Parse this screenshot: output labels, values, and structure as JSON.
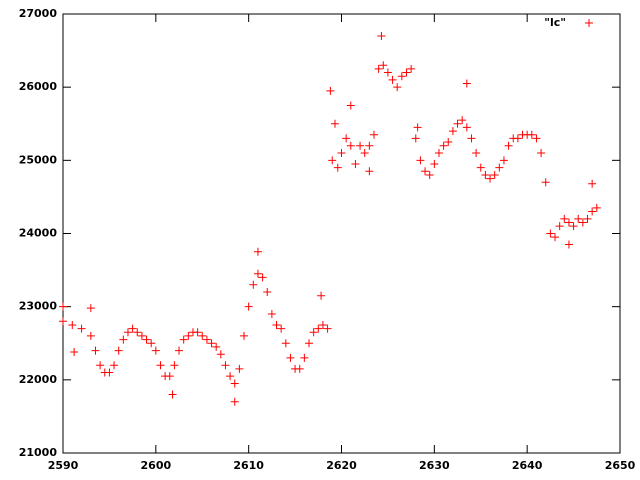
{
  "chart_data": {
    "type": "scatter",
    "x": [
      2590,
      2591,
      2592,
      2593,
      2593.5,
      2594,
      2594.5,
      2595,
      2595.5,
      2596,
      2596.5,
      2597,
      2597.5,
      2598,
      2598.5,
      2599,
      2599.5,
      2600,
      2600.5,
      2601,
      2601.5,
      2602,
      2602.5,
      2603,
      2603.5,
      2604,
      2604.5,
      2605,
      2605.5,
      2606,
      2606.5,
      2607,
      2607.5,
      2608,
      2608.5,
      2609,
      2609.5,
      2610,
      2610.5,
      2611,
      2611.5,
      2612,
      2612.5,
      2613,
      2613.5,
      2614,
      2614.5,
      2615,
      2615.5,
      2616,
      2616.5,
      2617,
      2617.5,
      2618,
      2618.5,
      2619,
      2619.3,
      2619.6,
      2620,
      2620.5,
      2621,
      2621.5,
      2622,
      2622.5,
      2623,
      2623.5,
      2624,
      2624.5,
      2625,
      2625.5,
      2626,
      2626.5,
      2627,
      2627.5,
      2628,
      2628.5,
      2629,
      2629.5,
      2630,
      2630.5,
      2631,
      2631.5,
      2632,
      2632.5,
      2633,
      2633.5,
      2634,
      2634.5,
      2635,
      2635.5,
      2636,
      2636.5,
      2637,
      2637.5,
      2638,
      2638.5,
      2639,
      2639.5,
      2640,
      2640.5,
      2641,
      2641.5,
      2642,
      2642.5,
      2643,
      2643.5,
      2644,
      2644.5,
      2645,
      2645.5,
      2646,
      2646.5,
      2647,
      2647.5,
      2591.2,
      2601.8,
      2608.5,
      2611,
      2617.8,
      2590,
      2593,
      2618.8,
      2624.3,
      2621,
      2623,
      2633.5,
      2628.2,
      2647,
      2644.5
    ],
    "series": [
      {
        "name": "\"lc\"",
        "color": "#ff0000",
        "values": [
          22800,
          22750,
          22700,
          22600,
          22400,
          22200,
          22100,
          22100,
          22200,
          22400,
          22550,
          22650,
          22700,
          22650,
          22600,
          22550,
          22500,
          22400,
          22200,
          22050,
          22050,
          22200,
          22400,
          22550,
          22600,
          22650,
          22650,
          22600,
          22550,
          22500,
          22450,
          22350,
          22200,
          22050,
          21950,
          22150,
          22600,
          23000,
          23300,
          23450,
          23400,
          23200,
          22900,
          22750,
          22700,
          22500,
          22300,
          22150,
          22150,
          22300,
          22500,
          22650,
          22700,
          22750,
          22700,
          25000,
          25500,
          24900,
          25100,
          25300,
          25200,
          24950,
          25200,
          25100,
          25200,
          25350,
          26250,
          26300,
          26200,
          26100,
          26000,
          26150,
          26200,
          26250,
          25300,
          25000,
          24850,
          24800,
          24950,
          25100,
          25200,
          25250,
          25400,
          25500,
          25550,
          25450,
          25300,
          25100,
          24900,
          24800,
          24750,
          24800,
          24900,
          25000,
          25200,
          25300,
          25300,
          25350,
          25350,
          25350,
          25300,
          25100,
          24700,
          24000,
          23950,
          24100,
          24200,
          24150,
          24100,
          24200,
          24150,
          24200,
          24300,
          24350,
          22380,
          21800,
          21700,
          23750,
          23150,
          23000,
          22980,
          25950,
          26700,
          25750,
          24850,
          26050,
          25450,
          24680,
          23850
        ]
      }
    ],
    "xlim": [
      2590,
      2650
    ],
    "xticks": [
      2590,
      2600,
      2610,
      2620,
      2630,
      2640,
      2650
    ],
    "ylim": [
      21000,
      27000
    ],
    "yticks": [
      21000,
      22000,
      23000,
      24000,
      25000,
      26000,
      27000
    ],
    "legend": "top-right"
  }
}
